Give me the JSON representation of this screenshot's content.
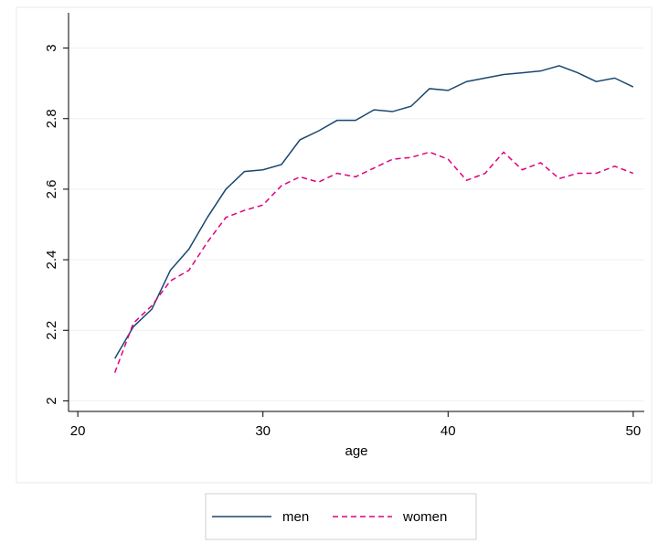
{
  "chart_data": {
    "type": "line",
    "x_label": "age",
    "x": [
      22,
      23,
      24,
      25,
      26,
      27,
      28,
      29,
      30,
      31,
      32,
      33,
      34,
      35,
      36,
      37,
      38,
      39,
      40,
      41,
      42,
      43,
      44,
      45,
      46,
      47,
      48,
      49,
      50
    ],
    "series": [
      {
        "name": "men",
        "color": "#1a476f",
        "dash": false,
        "values": [
          2.12,
          2.21,
          2.26,
          2.37,
          2.43,
          2.52,
          2.6,
          2.65,
          2.655,
          2.67,
          2.74,
          2.765,
          2.795,
          2.795,
          2.825,
          2.82,
          2.835,
          2.885,
          2.88,
          2.905,
          2.915,
          2.925,
          2.93,
          2.935,
          2.95,
          2.93,
          2.905,
          2.915,
          2.89
        ]
      },
      {
        "name": "women",
        "color": "#e0007f",
        "dash": true,
        "values": [
          2.08,
          2.22,
          2.27,
          2.34,
          2.37,
          2.45,
          2.52,
          2.54,
          2.555,
          2.61,
          2.635,
          2.62,
          2.645,
          2.635,
          2.66,
          2.685,
          2.69,
          2.705,
          2.685,
          2.625,
          2.645,
          2.705,
          2.655,
          2.675,
          2.63,
          2.645,
          2.645,
          2.665,
          2.645
        ]
      }
    ],
    "xlim": [
      19.5,
      50.6
    ],
    "xticks": [
      20,
      30,
      40,
      50
    ],
    "ylim": [
      1.97,
      3.1
    ],
    "yticks": [
      2,
      2.2,
      2.4,
      2.6,
      2.8,
      3
    ],
    "grid": true,
    "legend": "bottom"
  }
}
